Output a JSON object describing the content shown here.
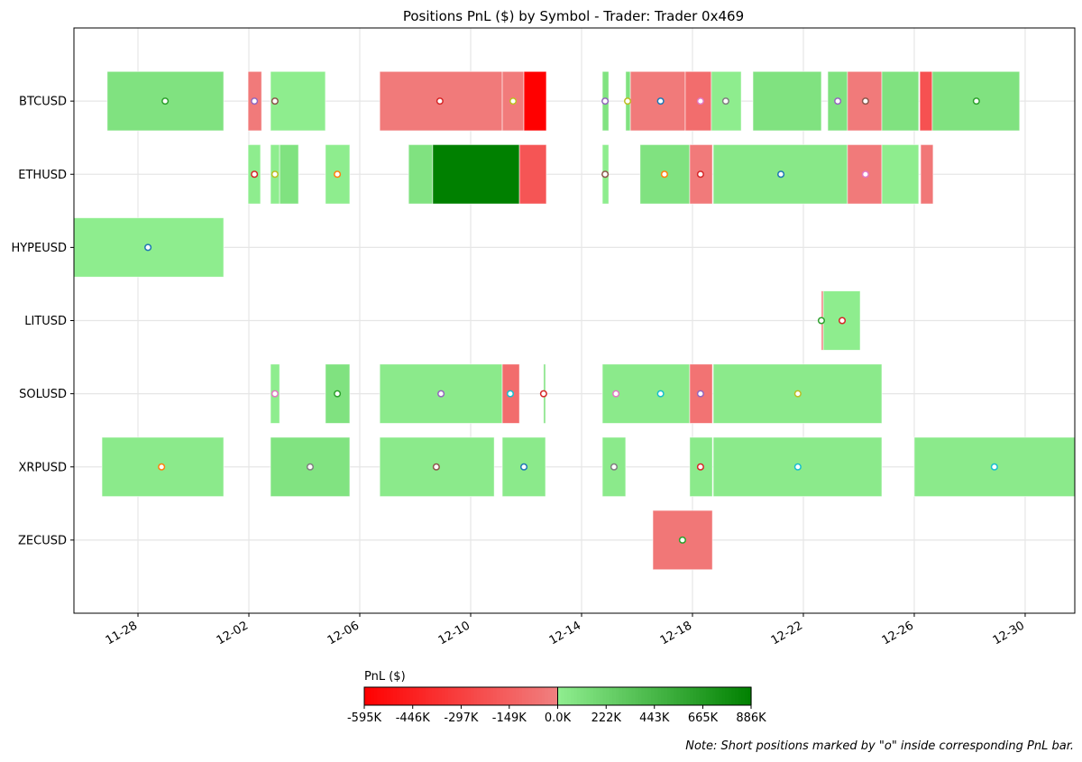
{
  "chart_data": {
    "type": "gantt-bar",
    "title": "Positions PnL ($) by Symbol - Trader: Trader 0x469",
    "x_units": "days since 11-28",
    "xlim": [
      -2.31,
      33.79
    ],
    "x_ticks": [
      {
        "day": 0,
        "label": "11-28"
      },
      {
        "day": 4,
        "label": "12-02"
      },
      {
        "day": 8,
        "label": "12-06"
      },
      {
        "day": 12,
        "label": "12-10"
      },
      {
        "day": 16,
        "label": "12-14"
      },
      {
        "day": 20,
        "label": "12-18"
      },
      {
        "day": 24,
        "label": "12-22"
      },
      {
        "day": 28,
        "label": "12-26"
      },
      {
        "day": 32,
        "label": "12-30"
      }
    ],
    "symbols": [
      "BTCUSD",
      "ETHUSD",
      "HYPEUSD",
      "LITUSD",
      "SOLUSD",
      "XRPUSD",
      "ZECUSD"
    ],
    "grid": true,
    "bars": [
      {
        "symbol": "BTCUSD",
        "start": -1.11,
        "end": 3.09,
        "pnl": 100000
      },
      {
        "symbol": "BTCUSD",
        "start": 3.97,
        "end": 4.46,
        "pnl": -30000
      },
      {
        "symbol": "BTCUSD",
        "start": 4.78,
        "end": 6.76,
        "pnl": 10000
      },
      {
        "symbol": "BTCUSD",
        "start": 8.72,
        "end": 13.14,
        "pnl": -30000
      },
      {
        "symbol": "BTCUSD",
        "start": 13.14,
        "end": 13.92,
        "pnl": -25000
      },
      {
        "symbol": "BTCUSD",
        "start": 13.92,
        "end": 14.73,
        "pnl": -595000
      },
      {
        "symbol": "BTCUSD",
        "start": 16.75,
        "end": 16.98,
        "pnl": 90000
      },
      {
        "symbol": "BTCUSD",
        "start": 17.59,
        "end": 17.76,
        "pnl": 100000
      },
      {
        "symbol": "BTCUSD",
        "start": 17.76,
        "end": 19.74,
        "pnl": -30000
      },
      {
        "symbol": "BTCUSD",
        "start": 19.74,
        "end": 20.68,
        "pnl": -90000
      },
      {
        "symbol": "BTCUSD",
        "start": 20.68,
        "end": 21.76,
        "pnl": 10000
      },
      {
        "symbol": "BTCUSD",
        "start": 22.18,
        "end": 24.65,
        "pnl": 100000
      },
      {
        "symbol": "BTCUSD",
        "start": 24.88,
        "end": 25.59,
        "pnl": 100000
      },
      {
        "symbol": "BTCUSD",
        "start": 25.59,
        "end": 26.83,
        "pnl": -30000
      },
      {
        "symbol": "BTCUSD",
        "start": 26.83,
        "end": 28.16,
        "pnl": 100000
      },
      {
        "symbol": "BTCUSD",
        "start": 28.2,
        "end": 28.65,
        "pnl": -220000
      },
      {
        "symbol": "BTCUSD",
        "start": 28.65,
        "end": 31.8,
        "pnl": 100000
      },
      {
        "symbol": "ETHUSD",
        "start": 3.97,
        "end": 4.42,
        "pnl": 10000
      },
      {
        "symbol": "ETHUSD",
        "start": 4.78,
        "end": 5.11,
        "pnl": 10000
      },
      {
        "symbol": "ETHUSD",
        "start": 5.11,
        "end": 5.79,
        "pnl": 100000
      },
      {
        "symbol": "ETHUSD",
        "start": 6.76,
        "end": 7.64,
        "pnl": 10000
      },
      {
        "symbol": "ETHUSD",
        "start": 9.76,
        "end": 10.63,
        "pnl": 100000
      },
      {
        "symbol": "ETHUSD",
        "start": 10.63,
        "end": 13.76,
        "pnl": 886000
      },
      {
        "symbol": "ETHUSD",
        "start": 13.76,
        "end": 14.73,
        "pnl": -200000
      },
      {
        "symbol": "ETHUSD",
        "start": 16.75,
        "end": 16.98,
        "pnl": 10000
      },
      {
        "symbol": "ETHUSD",
        "start": 18.11,
        "end": 19.9,
        "pnl": 100000
      },
      {
        "symbol": "ETHUSD",
        "start": 19.9,
        "end": 20.72,
        "pnl": -30000
      },
      {
        "symbol": "ETHUSD",
        "start": 20.75,
        "end": 25.59,
        "pnl": 50000
      },
      {
        "symbol": "ETHUSD",
        "start": 25.59,
        "end": 26.83,
        "pnl": -30000
      },
      {
        "symbol": "ETHUSD",
        "start": 26.83,
        "end": 28.16,
        "pnl": 10000
      },
      {
        "symbol": "ETHUSD",
        "start": 28.23,
        "end": 28.68,
        "pnl": -40000
      },
      {
        "symbol": "HYPEUSD",
        "start": -2.31,
        "end": 3.09,
        "pnl": 10000
      },
      {
        "symbol": "LITUSD",
        "start": 24.65,
        "end": 24.72,
        "pnl": -30000
      },
      {
        "symbol": "LITUSD",
        "start": 24.72,
        "end": 26.05,
        "pnl": 10000
      },
      {
        "symbol": "SOLUSD",
        "start": 4.78,
        "end": 5.11,
        "pnl": 10000
      },
      {
        "symbol": "SOLUSD",
        "start": 6.76,
        "end": 7.64,
        "pnl": 100000
      },
      {
        "symbol": "SOLUSD",
        "start": 8.72,
        "end": 13.14,
        "pnl": 30000
      },
      {
        "symbol": "SOLUSD",
        "start": 13.14,
        "end": 13.76,
        "pnl": -90000
      },
      {
        "symbol": "SOLUSD",
        "start": 14.63,
        "end": 14.7,
        "pnl": 100000
      },
      {
        "symbol": "SOLUSD",
        "start": 16.75,
        "end": 19.9,
        "pnl": 30000
      },
      {
        "symbol": "SOLUSD",
        "start": 19.9,
        "end": 20.72,
        "pnl": -60000
      },
      {
        "symbol": "SOLUSD",
        "start": 20.75,
        "end": 26.83,
        "pnl": 30000
      },
      {
        "symbol": "XRPUSD",
        "start": -1.3,
        "end": 3.09,
        "pnl": 30000
      },
      {
        "symbol": "XRPUSD",
        "start": 4.78,
        "end": 7.64,
        "pnl": 90000
      },
      {
        "symbol": "XRPUSD",
        "start": 8.72,
        "end": 12.85,
        "pnl": 30000
      },
      {
        "symbol": "XRPUSD",
        "start": 13.14,
        "end": 14.7,
        "pnl": 30000
      },
      {
        "symbol": "XRPUSD",
        "start": 16.75,
        "end": 17.59,
        "pnl": 30000
      },
      {
        "symbol": "XRPUSD",
        "start": 19.9,
        "end": 20.72,
        "pnl": 30000
      },
      {
        "symbol": "XRPUSD",
        "start": 20.75,
        "end": 26.83,
        "pnl": 30000
      },
      {
        "symbol": "XRPUSD",
        "start": 28.0,
        "end": 33.79,
        "pnl": 30000
      },
      {
        "symbol": "ZECUSD",
        "start": 18.57,
        "end": 20.72,
        "pnl": -40000
      }
    ],
    "short_markers": [
      {
        "symbol": "BTCUSD",
        "day": 0.98,
        "color": "#2ca02c"
      },
      {
        "symbol": "BTCUSD",
        "day": 4.2,
        "color": "#9467bd"
      },
      {
        "symbol": "BTCUSD",
        "day": 4.94,
        "color": "#8c564b"
      },
      {
        "symbol": "BTCUSD",
        "day": 10.89,
        "color": "#d62728"
      },
      {
        "symbol": "BTCUSD",
        "day": 13.53,
        "color": "#bcbd22"
      },
      {
        "symbol": "BTCUSD",
        "day": 16.85,
        "color": "#9467bd"
      },
      {
        "symbol": "BTCUSD",
        "day": 17.66,
        "color": "#bcbd22"
      },
      {
        "symbol": "BTCUSD",
        "day": 18.85,
        "color": "#1f77b4"
      },
      {
        "symbol": "BTCUSD",
        "day": 20.29,
        "color": "#e377c2"
      },
      {
        "symbol": "BTCUSD",
        "day": 21.2,
        "color": "#7f7f7f"
      },
      {
        "symbol": "BTCUSD",
        "day": 25.24,
        "color": "#9467bd"
      },
      {
        "symbol": "BTCUSD",
        "day": 26.24,
        "color": "#8c564b"
      },
      {
        "symbol": "BTCUSD",
        "day": 30.24,
        "color": "#2ca02c"
      },
      {
        "symbol": "ETHUSD",
        "day": 4.2,
        "color": "#d62728"
      },
      {
        "symbol": "ETHUSD",
        "day": 4.94,
        "color": "#bcbd22"
      },
      {
        "symbol": "ETHUSD",
        "day": 7.19,
        "color": "#ff7f0e"
      },
      {
        "symbol": "ETHUSD",
        "day": 16.85,
        "color": "#8c564b"
      },
      {
        "symbol": "ETHUSD",
        "day": 18.99,
        "color": "#ff7f0e"
      },
      {
        "symbol": "ETHUSD",
        "day": 20.29,
        "color": "#d62728"
      },
      {
        "symbol": "ETHUSD",
        "day": 23.19,
        "color": "#1f77b4"
      },
      {
        "symbol": "ETHUSD",
        "day": 26.24,
        "color": "#e377c2"
      },
      {
        "symbol": "HYPEUSD",
        "day": 0.36,
        "color": "#1f77b4"
      },
      {
        "symbol": "LITUSD",
        "day": 24.65,
        "color": "#2ca02c"
      },
      {
        "symbol": "LITUSD",
        "day": 25.4,
        "color": "#d62728"
      },
      {
        "symbol": "SOLUSD",
        "day": 4.94,
        "color": "#e377c2"
      },
      {
        "symbol": "SOLUSD",
        "day": 7.19,
        "color": "#2ca02c"
      },
      {
        "symbol": "SOLUSD",
        "day": 10.93,
        "color": "#9467bd"
      },
      {
        "symbol": "SOLUSD",
        "day": 13.43,
        "color": "#17becf"
      },
      {
        "symbol": "SOLUSD",
        "day": 14.63,
        "color": "#d62728"
      },
      {
        "symbol": "SOLUSD",
        "day": 17.24,
        "color": "#e377c2"
      },
      {
        "symbol": "SOLUSD",
        "day": 18.85,
        "color": "#17becf"
      },
      {
        "symbol": "SOLUSD",
        "day": 20.29,
        "color": "#9467bd"
      },
      {
        "symbol": "SOLUSD",
        "day": 23.8,
        "color": "#bcbd22"
      },
      {
        "symbol": "XRPUSD",
        "day": 0.85,
        "color": "#ff7f0e"
      },
      {
        "symbol": "XRPUSD",
        "day": 6.21,
        "color": "#7f7f7f"
      },
      {
        "symbol": "XRPUSD",
        "day": 10.76,
        "color": "#8c564b"
      },
      {
        "symbol": "XRPUSD",
        "day": 13.92,
        "color": "#1f77b4"
      },
      {
        "symbol": "XRPUSD",
        "day": 17.17,
        "color": "#7f7f7f"
      },
      {
        "symbol": "XRPUSD",
        "day": 20.29,
        "color": "#d62728"
      },
      {
        "symbol": "XRPUSD",
        "day": 23.8,
        "color": "#17becf"
      },
      {
        "symbol": "XRPUSD",
        "day": 30.89,
        "color": "#17becf"
      },
      {
        "symbol": "ZECUSD",
        "day": 19.64,
        "color": "#2ca02c"
      }
    ],
    "colorbar": {
      "label": "PnL ($)",
      "min": -595000,
      "max": 886000,
      "neg_colors": [
        "#ff0000",
        "#f08080"
      ],
      "pos_colors": [
        "#90ee90",
        "#008000"
      ],
      "ticks": [
        {
          "value": -595000,
          "label": "-595K"
        },
        {
          "value": -446000,
          "label": "-446K"
        },
        {
          "value": -297000,
          "label": "-297K"
        },
        {
          "value": -149000,
          "label": "-149K"
        },
        {
          "value": 0,
          "label": "0.0K"
        },
        {
          "value": 222000,
          "label": "222K"
        },
        {
          "value": 443000,
          "label": "443K"
        },
        {
          "value": 665000,
          "label": "665K"
        },
        {
          "value": 886000,
          "label": "886K"
        }
      ]
    },
    "note": "Note: Short positions marked by \"o\" inside corresponding PnL bar."
  }
}
